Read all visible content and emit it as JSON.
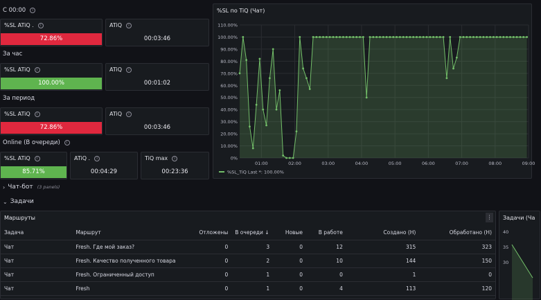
{
  "sections": {
    "s1": "С 00:00",
    "s2": "За час",
    "s3": "За период",
    "s4": "Online (В очереди)"
  },
  "stats": {
    "s1_sl": {
      "label": "%SL ATiQ .",
      "value": "72.86%",
      "status": "red"
    },
    "s1_atiq": {
      "label": "ATiQ",
      "value": "00:03:46"
    },
    "s2_sl": {
      "label": "%SL ATiQ",
      "value": "100.00%",
      "status": "green"
    },
    "s2_atiq": {
      "label": "ATiQ",
      "value": "00:01:02"
    },
    "s3_sl": {
      "label": "%SL ATiQ",
      "value": "72.86%",
      "status": "red"
    },
    "s3_atiq": {
      "label": "ATiQ",
      "value": "00:03:46"
    },
    "s4_sl": {
      "label": "%SL ATiQ",
      "value": "85.71%",
      "status": "green"
    },
    "s4_atiq": {
      "label": "ATiQ .",
      "value": "00:04:29"
    },
    "s4_tiq": {
      "label": "TiQ max",
      "value": "00:23:36"
    }
  },
  "rows": {
    "chatbot": {
      "label": "Чат-бот",
      "sub": "(3 panels)"
    },
    "tasks": {
      "label": "Задачи"
    }
  },
  "chart_data": {
    "type": "line",
    "title": "%SL по TiQ (Чат)",
    "y_ticks": [
      "0%",
      "10.00%",
      "20.00%",
      "30.00%",
      "40.00%",
      "50.00%",
      "60.00%",
      "70.00%",
      "80.00%",
      "90.00%",
      "100.00%",
      "110.00%"
    ],
    "ylim": [
      0,
      110
    ],
    "x_ticks": [
      "01:00",
      "02:00",
      "03:00",
      "04:00",
      "05:00",
      "06:00",
      "07:00",
      "08:00",
      "09:00"
    ],
    "xlim": [
      0.35,
      9.0
    ],
    "legend": "%SL_TiQ  Last *: 100.00%",
    "color": "#73bf69",
    "series": [
      {
        "name": "%SL_TiQ",
        "x": [
          0.35,
          0.45,
          0.55,
          0.65,
          0.75,
          0.85,
          0.95,
          1.05,
          1.15,
          1.25,
          1.35,
          1.45,
          1.55,
          1.65,
          1.75,
          1.85,
          1.95,
          2.05,
          2.15,
          2.25,
          2.35,
          2.45,
          2.55,
          2.65,
          2.75,
          2.85,
          2.95,
          3.05,
          3.15,
          3.25,
          3.35,
          3.45,
          3.55,
          3.65,
          3.75,
          3.85,
          3.95,
          4.05,
          4.15,
          4.25,
          4.35,
          4.45,
          4.55,
          4.65,
          4.75,
          4.85,
          4.95,
          5.05,
          5.15,
          5.25,
          5.35,
          5.45,
          5.55,
          5.65,
          5.75,
          5.85,
          5.95,
          6.05,
          6.15,
          6.25,
          6.35,
          6.45,
          6.55,
          6.65,
          6.75,
          6.85,
          6.95,
          7.05,
          7.15,
          7.25,
          7.35,
          7.45,
          7.55,
          7.65,
          7.75,
          7.85,
          7.95,
          8.05,
          8.15,
          8.25,
          8.35,
          8.45,
          8.55,
          8.65,
          8.75,
          8.85,
          8.95
        ],
        "values": [
          70,
          100,
          81,
          26,
          8,
          44,
          82,
          40,
          27,
          66,
          90,
          40,
          56,
          2,
          0,
          0,
          0,
          22,
          100,
          74,
          66,
          57,
          100,
          100,
          100,
          100,
          100,
          100,
          100,
          100,
          100,
          100,
          100,
          100,
          100,
          100,
          100,
          100,
          50,
          100,
          100,
          100,
          100,
          100,
          100,
          100,
          100,
          100,
          100,
          100,
          100,
          100,
          100,
          100,
          100,
          100,
          100,
          100,
          100,
          100,
          100,
          100,
          66,
          100,
          74,
          83,
          100,
          100,
          100,
          100,
          100,
          100,
          100,
          100,
          100,
          100,
          100,
          100,
          100,
          100,
          100,
          100,
          100,
          100,
          100,
          100,
          100
        ]
      }
    ]
  },
  "routes_table": {
    "title": "Маршруты",
    "headers": [
      "Задача",
      "Маршрут",
      "Отложены",
      "В очереди",
      "Новые",
      "В работе",
      "Создано (Н)",
      "Обработано (Н)"
    ],
    "sort_icon": "↓",
    "rows": [
      [
        "Чат",
        "Fresh. Где мой заказ?",
        "0",
        "3",
        "0",
        "12",
        "315",
        "323"
      ],
      [
        "Чат",
        "Fresh. Качество полученного товара",
        "0",
        "2",
        "0",
        "10",
        "144",
        "150"
      ],
      [
        "Чат",
        "Fresh. Ограниченный доступ",
        "0",
        "1",
        "0",
        "0",
        "1",
        "0"
      ],
      [
        "Чат",
        "Fresh",
        "0",
        "1",
        "0",
        "4",
        "113",
        "120"
      ]
    ]
  },
  "tasks_chart": {
    "title": "Задачи (Ча",
    "y_ticks": [
      "40",
      "35",
      "30"
    ]
  }
}
